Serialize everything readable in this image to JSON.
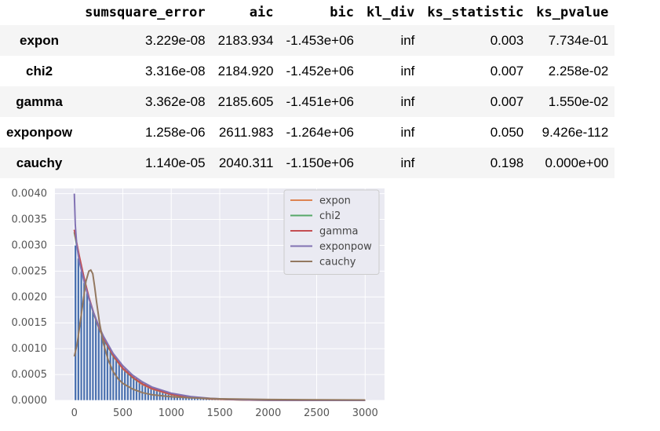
{
  "table": {
    "columns": [
      "sumsquare_error",
      "aic",
      "bic",
      "kl_div",
      "ks_statistic",
      "ks_pvalue"
    ],
    "rows": [
      {
        "index": "expon",
        "cells": [
          "3.229e-08",
          "2183.934",
          "-1.453e+06",
          "inf",
          "0.003",
          "7.734e-01"
        ]
      },
      {
        "index": "chi2",
        "cells": [
          "3.316e-08",
          "2184.920",
          "-1.452e+06",
          "inf",
          "0.007",
          "2.258e-02"
        ]
      },
      {
        "index": "gamma",
        "cells": [
          "3.362e-08",
          "2185.605",
          "-1.451e+06",
          "inf",
          "0.007",
          "1.550e-02"
        ]
      },
      {
        "index": "exponpow",
        "cells": [
          "1.258e-06",
          "2611.983",
          "-1.264e+06",
          "inf",
          "0.050",
          "9.426e-112"
        ]
      },
      {
        "index": "cauchy",
        "cells": [
          "1.140e-05",
          "2040.311",
          "-1.150e+06",
          "inf",
          "0.198",
          "0.000e+00"
        ]
      }
    ]
  },
  "chart_data": {
    "type": "histogram",
    "title": "",
    "xlabel": "",
    "ylabel": "",
    "xlim": [
      -200,
      3200
    ],
    "ylim": [
      0,
      0.0041
    ],
    "xticks": [
      0,
      500,
      1000,
      1500,
      2000,
      2500,
      3000
    ],
    "yticks": [
      0.0,
      0.0005,
      0.001,
      0.0015,
      0.002,
      0.0025,
      0.003,
      0.0035,
      0.004
    ],
    "ytick_labels": [
      "0.0000",
      "0.0005",
      "0.0010",
      "0.0015",
      "0.0020",
      "0.0025",
      "0.0030",
      "0.0035",
      "0.0040"
    ],
    "grid": true,
    "background": "#eaeaf2",
    "histogram": {
      "color": "#4c72b0",
      "bin_width": 30,
      "bin_starts": [
        0,
        30,
        60,
        90,
        120,
        150,
        180,
        210,
        240,
        270,
        300,
        330,
        360,
        390,
        420,
        450,
        480,
        510,
        540,
        570,
        600,
        630,
        660,
        690,
        720,
        750,
        780,
        810,
        840,
        870,
        900,
        930,
        960,
        990,
        1020,
        1050,
        1080,
        1110,
        1140,
        1170,
        1200,
        1230,
        1260,
        1290,
        1320,
        1350,
        1380,
        1410,
        1440,
        1470,
        1500,
        1560,
        1620,
        1700,
        1800,
        1950,
        2100,
        2300,
        2500,
        2700,
        2900,
        3050
      ],
      "density": [
        0.003,
        0.00275,
        0.0025,
        0.00228,
        0.00208,
        0.0019,
        0.00173,
        0.00158,
        0.00144,
        0.00131,
        0.00119,
        0.00109,
        0.00099,
        0.0009,
        0.00082,
        0.00075,
        0.00068,
        0.00062,
        0.00057,
        0.00052,
        0.00047,
        0.00043,
        0.00039,
        0.00036,
        0.00033,
        0.0003,
        0.00027,
        0.00025,
        0.00023,
        0.00021,
        0.00019,
        0.00017,
        0.00016,
        0.00014,
        0.00013,
        0.00012,
        0.00011,
        0.0001,
        9e-05,
        8e-05,
        7e-05,
        7e-05,
        6e-05,
        5e-05,
        5e-05,
        4e-05,
        4e-05,
        4e-05,
        3e-05,
        3e-05,
        3e-05,
        2e-05,
        2e-05,
        2e-05,
        1e-05,
        1e-05,
        1e-05,
        8e-06,
        6e-06,
        4e-06,
        3e-06,
        2e-06
      ]
    },
    "series": [
      {
        "name": "expon",
        "color": "#dd8452",
        "x": [
          0,
          25,
          50,
          100,
          150,
          200,
          250,
          300,
          400,
          500,
          600,
          700,
          800,
          1000,
          1200,
          1400,
          1600,
          1800,
          2000,
          2500,
          3000
        ],
        "y": [
          0.0033,
          0.00303,
          0.00279,
          0.00236,
          0.00199,
          0.00168,
          0.00142,
          0.0012,
          0.00086,
          0.00061,
          0.00044,
          0.00031,
          0.00022,
          0.00011,
          5.7e-05,
          2.9e-05,
          1.5e-05,
          7.5e-06,
          3.8e-06,
          7e-07,
          1e-07
        ]
      },
      {
        "name": "chi2",
        "color": "#55a868",
        "x": [
          0,
          25,
          50,
          100,
          150,
          200,
          250,
          300,
          400,
          500,
          600,
          700,
          800,
          1000,
          1200,
          1400,
          1600,
          1800,
          2000,
          2500,
          3000
        ],
        "y": [
          0.00325,
          0.003,
          0.00277,
          0.00235,
          0.00198,
          0.00168,
          0.00142,
          0.0012,
          0.00086,
          0.00062,
          0.00044,
          0.00032,
          0.00023,
          0.00012,
          6e-05,
          3e-05,
          1.6e-05,
          8e-06,
          4e-06,
          8e-07,
          1e-07
        ]
      },
      {
        "name": "gamma",
        "color": "#c44e52",
        "x": [
          0,
          25,
          50,
          100,
          150,
          200,
          250,
          300,
          400,
          500,
          600,
          700,
          800,
          1000,
          1200,
          1400,
          1600,
          1800,
          2000,
          2500,
          3000
        ],
        "y": [
          0.0033,
          0.00304,
          0.0028,
          0.00237,
          0.002,
          0.00169,
          0.00143,
          0.00121,
          0.00087,
          0.00062,
          0.00045,
          0.00032,
          0.00023,
          0.00012,
          6e-05,
          3e-05,
          1.6e-05,
          8e-06,
          4e-06,
          8e-07,
          1e-07
        ]
      },
      {
        "name": "exponpow",
        "color": "#8172b3",
        "x": [
          0,
          10,
          25,
          50,
          100,
          150,
          200,
          250,
          300,
          400,
          500,
          600,
          700,
          800,
          1000,
          1200,
          1400,
          1600,
          1800,
          2000,
          2500,
          3000
        ],
        "y": [
          0.004,
          0.0034,
          0.003,
          0.0027,
          0.0023,
          0.00197,
          0.00169,
          0.00145,
          0.00124,
          0.00091,
          0.00067,
          0.00049,
          0.00036,
          0.00026,
          0.00014,
          7.5e-05,
          4e-05,
          2.1e-05,
          1.1e-05,
          6e-06,
          1.2e-06,
          2e-07
        ]
      },
      {
        "name": "cauchy",
        "color": "#937860",
        "x": [
          0,
          30,
          60,
          90,
          120,
          150,
          170,
          190,
          210,
          230,
          260,
          300,
          350,
          400,
          450,
          500,
          600,
          700,
          800,
          1000,
          1200,
          1500,
          2000,
          2500,
          3000
        ],
        "y": [
          0.00085,
          0.0011,
          0.0015,
          0.0019,
          0.0023,
          0.0025,
          0.00252,
          0.00245,
          0.0022,
          0.0019,
          0.0015,
          0.0011,
          0.00078,
          0.00056,
          0.00042,
          0.00033,
          0.00022,
          0.00015,
          0.00011,
          7e-05,
          5e-05,
          3e-05,
          1.7e-05,
          1.1e-05,
          8e-06
        ]
      }
    ],
    "legend": {
      "placement": "top-right"
    }
  }
}
